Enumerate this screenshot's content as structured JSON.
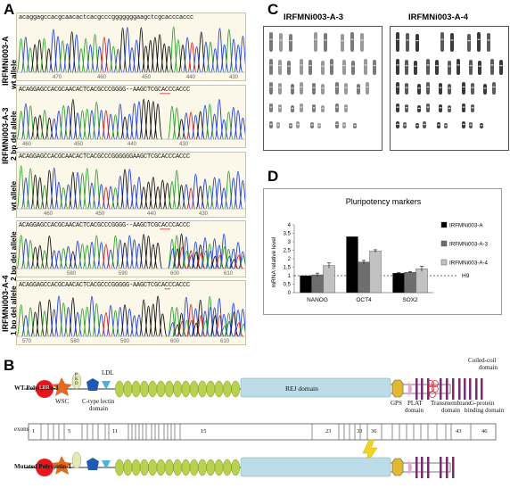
{
  "panels": {
    "a": "A",
    "b": "B",
    "c": "C",
    "d": "D"
  },
  "panel_a": {
    "tracks": [
      {
        "seq": "acaggagccacgcaacactcacgcccgggggggaagctcgcacccaccc",
        "ticks": [
          "470",
          "460",
          "450",
          "440",
          "430"
        ],
        "sub": "wt allele"
      },
      {
        "seq": "ACAGGAGCCACGCAACACTCACGCCCGGGG--AAGCTCGCACCCACCC",
        "ticks": [
          "460",
          "450",
          "440",
          "430"
        ],
        "sub": "2 bp del allele"
      },
      {
        "seq": "ACAGGAGCCACGCAACACTCACGCCCGGGGGGAAGCTCGCACCCACCC",
        "ticks": [
          "460",
          "450",
          "440",
          "430"
        ],
        "sub": "wt allele"
      },
      {
        "seq": "ACAGGAGCCACGCAACACTCACGCCCGGGG--AAGCTCGCACCCACCC",
        "ticks": [
          "580",
          "590",
          "600",
          "610"
        ],
        "sub": "2 bp del allele"
      },
      {
        "seq": "ACAGGAGCCACGCAACACTCACGCCCGGGGG-AAGCTCGCACCCACCC",
        "ticks": [
          "570",
          "580",
          "590",
          "600",
          "610"
        ],
        "sub": "1 bp del allele"
      }
    ],
    "groups": [
      "IRFMNi003-A",
      "IRFMNi003-A-3",
      "IRFMNi003-A-4"
    ]
  },
  "panel_c": {
    "titles": [
      "IRFMNi003-A-3",
      "IRFMNi003-A-4"
    ]
  },
  "chart_data": {
    "type": "bar",
    "title": "Pluripotency markers",
    "categories": [
      "NANOG",
      "OCT4",
      "SOX2"
    ],
    "series": [
      {
        "name": "IRFMNi003-A",
        "values": [
          1.0,
          3.3,
          1.15
        ],
        "errors": [
          0,
          0,
          0.03
        ],
        "color": "#000000"
      },
      {
        "name": "IRFMNi003-A-3",
        "values": [
          1.05,
          1.8,
          1.2
        ],
        "errors": [
          0.1,
          0.1,
          0.05
        ],
        "color": "#6e6e6e"
      },
      {
        "name": "IRFMNi003-A-4",
        "values": [
          1.6,
          2.45,
          1.4
        ],
        "errors": [
          0.15,
          0.08,
          0.15
        ],
        "color": "#c2c2c2"
      }
    ],
    "ylabel": "mRNA relative level",
    "ylim": [
      0,
      4
    ],
    "yticks": [
      "0",
      "0,5",
      "1",
      "1,5",
      "2",
      "2,5",
      "3",
      "3,5",
      "4"
    ],
    "reference": {
      "label": "H9",
      "value": 1
    },
    "legend": "right"
  },
  "panel_b": {
    "wt_label": "WT Polycystin-1",
    "mut_label": "Mutated Polycystin-1",
    "exons_label": "exons",
    "domains": {
      "lrr": "LRR",
      "wsc": "WSC",
      "pkd": "P K D",
      "ldl": "LDL",
      "ctype": "C-type lectin",
      "ctype2": "domain",
      "rej": "REJ domain",
      "gps": "GPS",
      "plat": "PLAT",
      "plat2": "domain",
      "tm": "Transmembrane",
      "tm2": "domain",
      "gprot": "G-protein",
      "gprot2": "binding domain",
      "coiled": "Coiled-coil",
      "coiled2": "domain"
    },
    "exon_numbers": [
      "1",
      "5",
      "11",
      "15",
      "23",
      "33",
      "36",
      "43",
      "46"
    ]
  },
  "colors": {
    "trace_a": "#2ca02c",
    "trace_c": "#1f3fd6",
    "trace_g": "#111111",
    "trace_t": "#e02020",
    "rej": "#bcdde8",
    "ellipse": "#b8d24f",
    "tm": "#7a2a6e"
  }
}
